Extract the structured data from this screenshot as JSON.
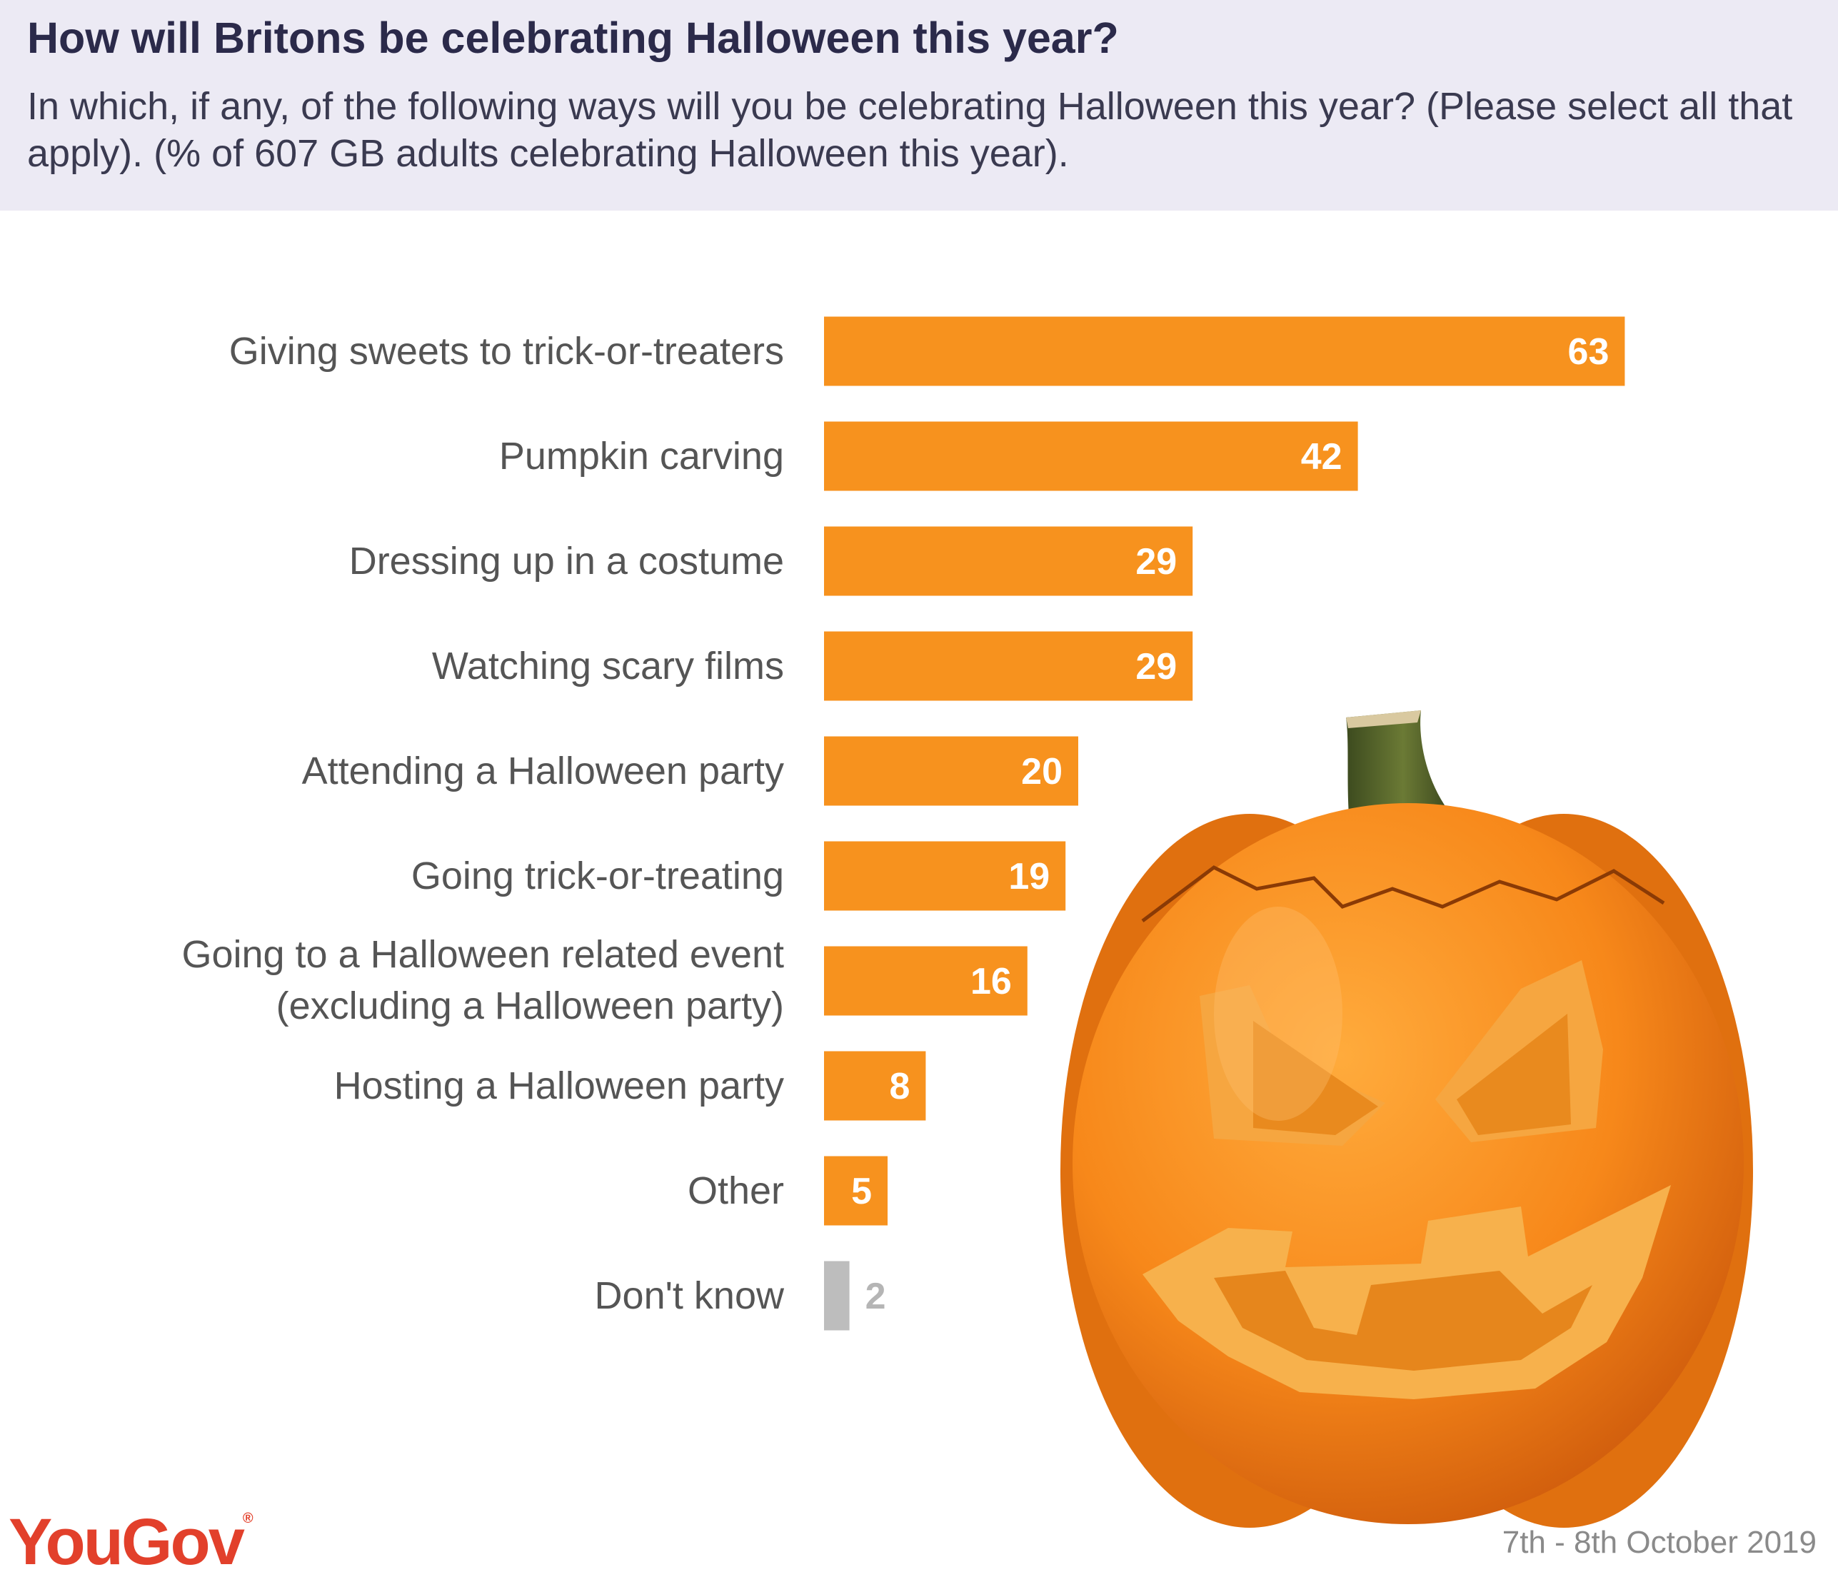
{
  "header": {
    "title": "How will Britons be celebrating Halloween this year?",
    "subtitle": "In which, if any, of the following ways will you be celebrating Halloween this year? (Please select all that apply). (% of 607 GB adults celebrating Halloween this year)."
  },
  "chart_data": {
    "type": "bar",
    "orientation": "horizontal",
    "categories": [
      "Giving sweets to trick-or-treaters",
      "Pumpkin carving",
      "Dressing up in a costume",
      "Watching scary films",
      "Attending a Halloween party",
      "Going trick-or-treating",
      "Going to a Halloween related event (excluding a Halloween party)",
      "Hosting a Halloween party",
      "Other",
      "Don't know"
    ],
    "values": [
      63,
      42,
      29,
      29,
      20,
      19,
      16,
      8,
      5,
      2
    ],
    "bar_colors": [
      "#f7921e",
      "#f7921e",
      "#f7921e",
      "#f7921e",
      "#f7921e",
      "#f7921e",
      "#f7921e",
      "#f7921e",
      "#f7921e",
      "#bdbdbd"
    ],
    "data_labels": true,
    "xlim": [
      0,
      100
    ],
    "grid": false,
    "legend": "none"
  },
  "image": {
    "icon": "jack-o-lantern-pumpkin-icon"
  },
  "footer": {
    "brand": "YouGov",
    "brand_mark": "®",
    "date": "7th - 8th October 2019"
  },
  "colors": {
    "accent": "#f7921e",
    "neutral": "#bdbdbd",
    "brand": "#e2402b",
    "header_bg": "#eceaf4",
    "title": "#2b2a4a"
  }
}
